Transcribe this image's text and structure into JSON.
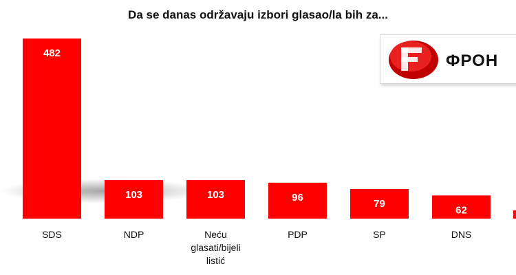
{
  "chart_data": {
    "type": "bar",
    "title": "Da se danas održavaju izbori glasao/la bih za...",
    "categories": [
      "SDS",
      "NDP",
      "Neću glasati/bijeli listić",
      "PDP",
      "SP",
      "DNS"
    ],
    "category_lines": [
      [
        "SDS"
      ],
      [
        "NDP"
      ],
      [
        "Neću",
        "glasati/bijeli",
        "listić"
      ],
      [
        "PDP"
      ],
      [
        "SP"
      ],
      [
        "DNS"
      ]
    ],
    "values": [
      482,
      103,
      103,
      96,
      79,
      62
    ],
    "ylim": [
      0,
      482
    ],
    "grid": false,
    "legend": "none",
    "bar_color": "#ff0000",
    "label_color": "#ffffff"
  },
  "logo": {
    "text": "ФРОН",
    "color": "#cc1111"
  }
}
